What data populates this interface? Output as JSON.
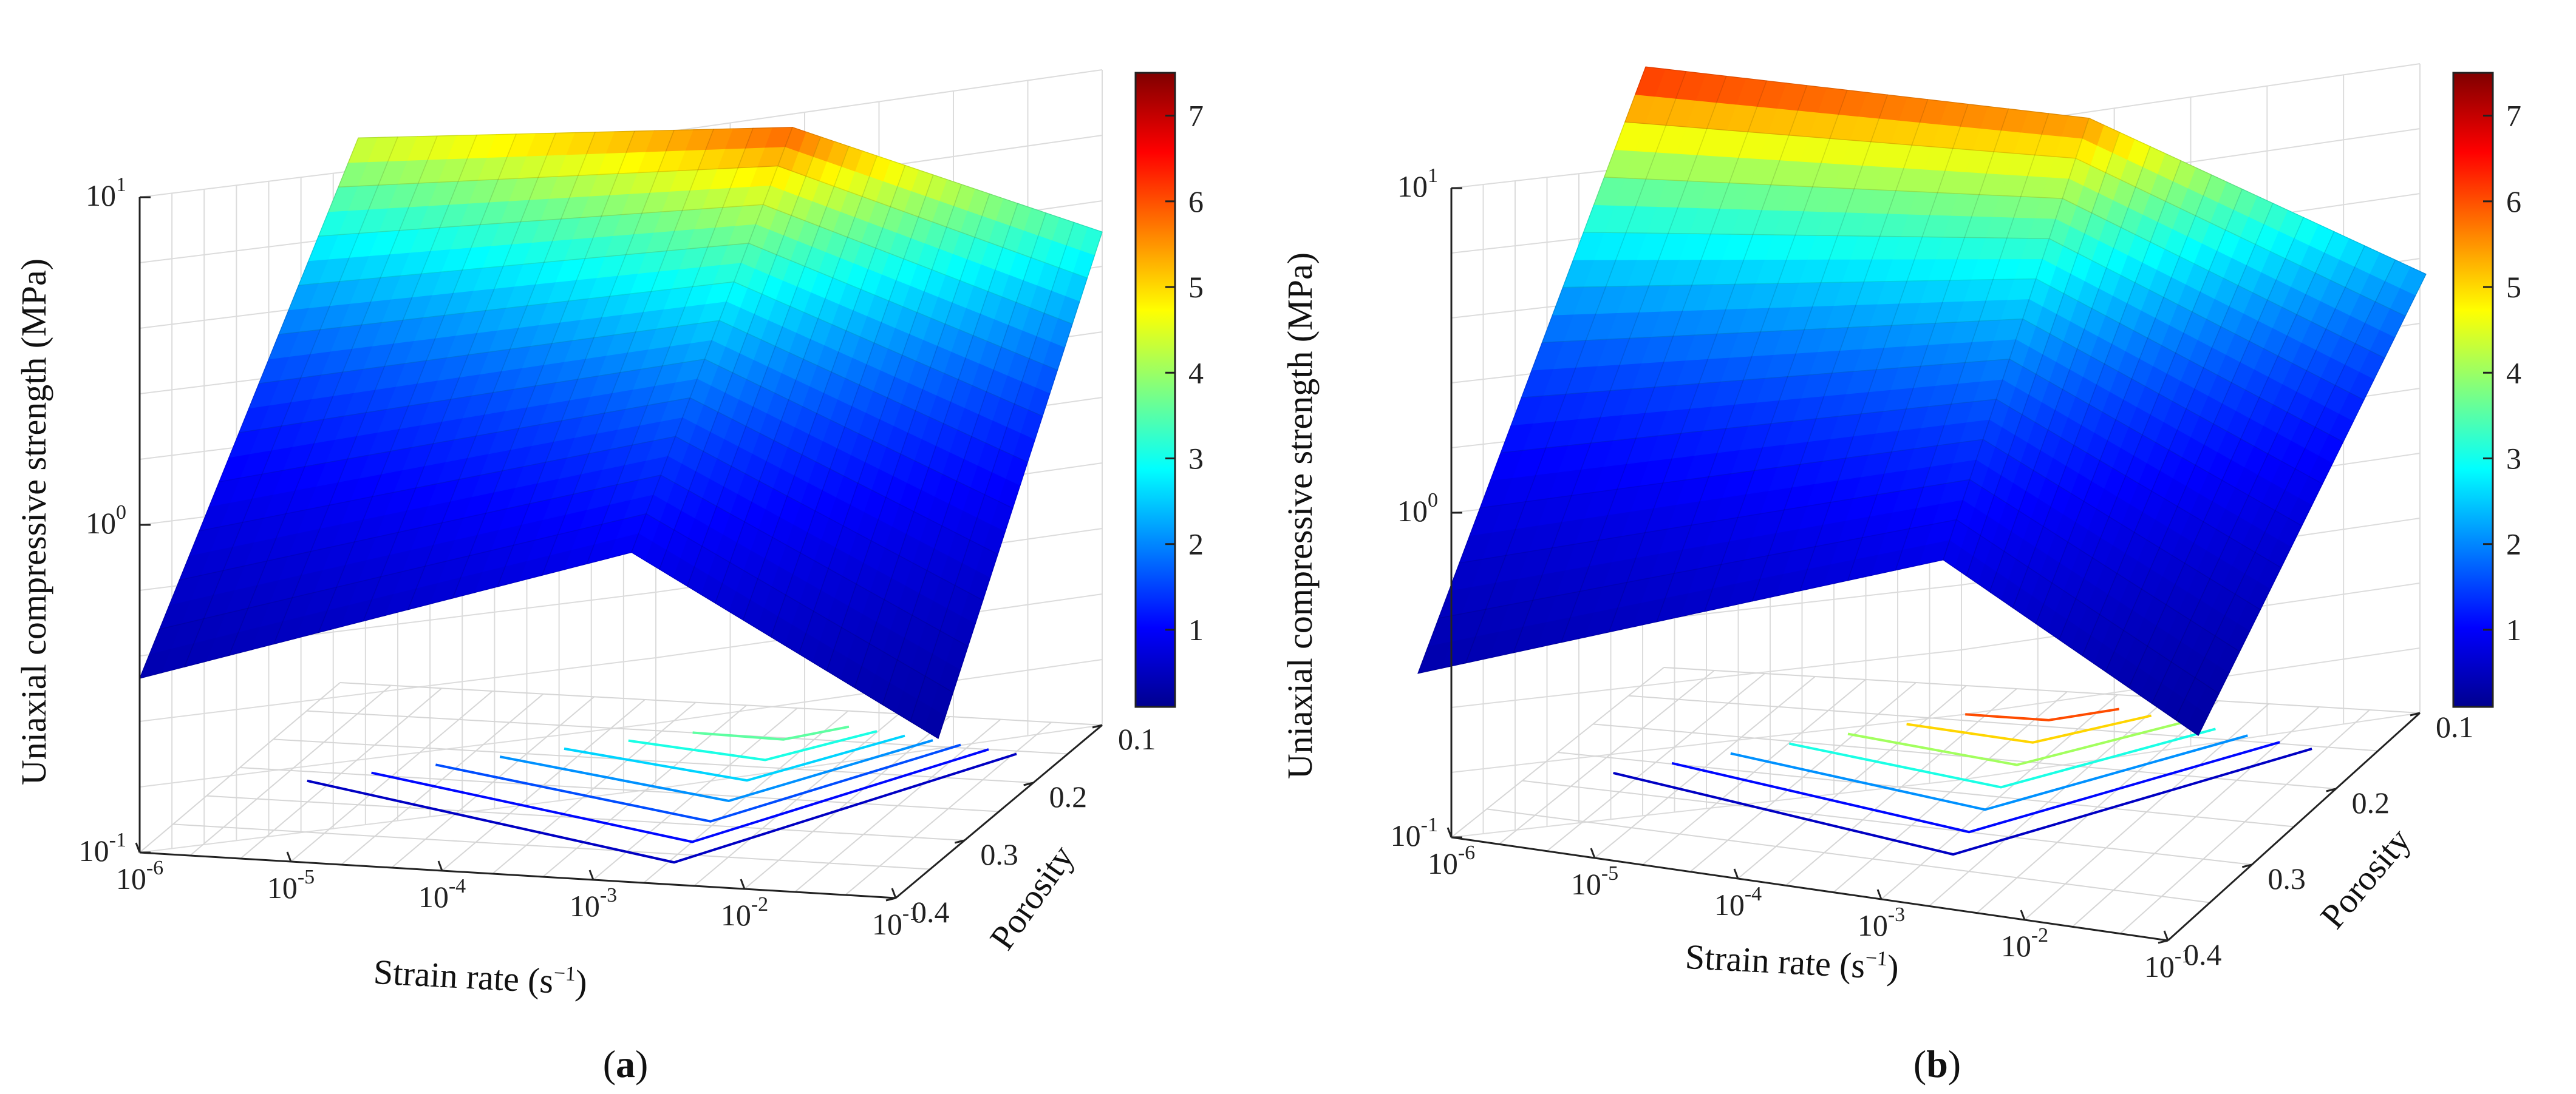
{
  "chart_data": [
    {
      "type": "surface3d",
      "panel_label": "a",
      "xlabel": "Strain rate (s",
      "xlabel_sup": "−1",
      "xlabel_end": ")",
      "ylabel": "Porosity",
      "zlabel": "Uniaxial compressive strength (MPa)",
      "z_scale": "log",
      "zlim": [
        0.1,
        10
      ],
      "x_ticks": [
        "-6",
        "-5",
        "-4",
        "-3",
        "-2",
        "-1"
      ],
      "y_ticks": [
        "0.1",
        "0.2",
        "0.3",
        "0.4"
      ],
      "z_ticks": [
        "-1",
        "0",
        "1"
      ],
      "colorbar_ticks": [
        "1",
        "2",
        "3",
        "4",
        "5",
        "6",
        "7"
      ],
      "colorbar_range": [
        0.1,
        7.5
      ],
      "corner_values": {
        "left": 0.34,
        "front": 0.86,
        "right": 0.27,
        "far_right": 3.2,
        "back": 4.5,
        "peak": 6.0
      },
      "contour_levels": [
        0.5,
        1,
        1.5,
        2,
        2.5,
        3,
        3.5
      ]
    },
    {
      "type": "surface3d",
      "panel_label": "b",
      "xlabel": "Strain rate (s",
      "xlabel_sup": "−1",
      "xlabel_end": ")",
      "ylabel": "Porosity",
      "zlabel": "Uniaxial compressive strength (MPa)",
      "z_scale": "log",
      "zlim": [
        0.1,
        10
      ],
      "x_ticks": [
        "-6",
        "-5",
        "-4",
        "-3",
        "-2",
        "-1"
      ],
      "y_ticks": [
        "0.1",
        "0.2",
        "0.3",
        "0.4"
      ],
      "z_ticks": [
        "-1",
        "0",
        "1"
      ],
      "colorbar_ticks": [
        "1",
        "2",
        "3",
        "4",
        "5",
        "6",
        "7"
      ],
      "colorbar_range": [
        0.1,
        7.5
      ],
      "corner_values": {
        "left": 0.32,
        "front": 0.78,
        "right": 0.25,
        "far_right": 2.2,
        "back": 6.5,
        "peak": 5.6
      },
      "contour_levels": [
        0.5,
        1,
        2,
        3,
        4,
        5,
        6
      ]
    }
  ]
}
